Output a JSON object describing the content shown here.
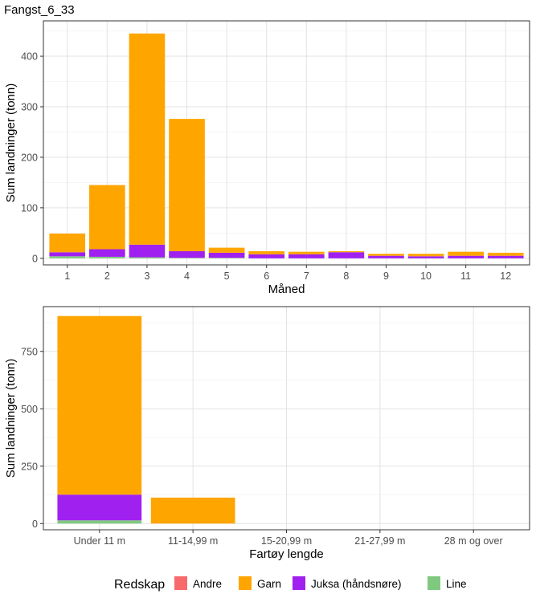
{
  "title": "Fangst_6_33",
  "colors": {
    "Andre": "#F8696B",
    "Garn": "#FFA500",
    "Juksa (håndsnøre)": "#A020F0",
    "Line": "#7FC97F"
  },
  "legend": {
    "title": "Redskap",
    "items": [
      "Andre",
      "Garn",
      "Juksa (håndsnøre)",
      "Line"
    ]
  },
  "chart_data": [
    {
      "type": "bar",
      "stacked": true,
      "xlabel": "Måned",
      "ylabel": "Sum landninger (tonn)",
      "categories": [
        "1",
        "2",
        "3",
        "4",
        "5",
        "6",
        "7",
        "8",
        "9",
        "10",
        "11",
        "12"
      ],
      "ylim": [
        -13,
        470
      ],
      "yticks": [
        0,
        100,
        200,
        300,
        400
      ],
      "grid": true,
      "series": [
        {
          "name": "Line",
          "values": [
            4,
            3,
            2,
            1,
            1,
            0,
            0,
            0,
            0,
            0,
            0,
            0
          ]
        },
        {
          "name": "Juksa (håndsnøre)",
          "values": [
            8,
            15,
            25,
            13,
            10,
            8,
            8,
            12,
            5,
            4,
            5,
            5
          ]
        },
        {
          "name": "Garn",
          "values": [
            37,
            127,
            418,
            262,
            10,
            6,
            5,
            2,
            4,
            5,
            8,
            6
          ]
        },
        {
          "name": "Andre",
          "values": [
            0,
            0,
            0,
            0,
            0,
            0,
            0,
            0,
            0,
            0,
            0,
            0
          ]
        }
      ]
    },
    {
      "type": "bar",
      "stacked": true,
      "xlabel": "Fartøy lengde",
      "ylabel": "Sum landninger (tonn)",
      "categories": [
        "Under 11 m",
        "11-14,99 m",
        "15-20,99 m",
        "21-27,99 m",
        "28 m og over"
      ],
      "ylim": [
        -27,
        945
      ],
      "yticks": [
        0,
        250,
        500,
        750
      ],
      "grid": true,
      "series": [
        {
          "name": "Line",
          "values": [
            14,
            0,
            0,
            0,
            0
          ]
        },
        {
          "name": "Juksa (håndsnøre)",
          "values": [
            112,
            0,
            0,
            0,
            0
          ]
        },
        {
          "name": "Garn",
          "values": [
            778,
            113,
            0,
            0,
            0
          ]
        },
        {
          "name": "Andre",
          "values": [
            0,
            0,
            0,
            0,
            0
          ]
        }
      ]
    }
  ]
}
